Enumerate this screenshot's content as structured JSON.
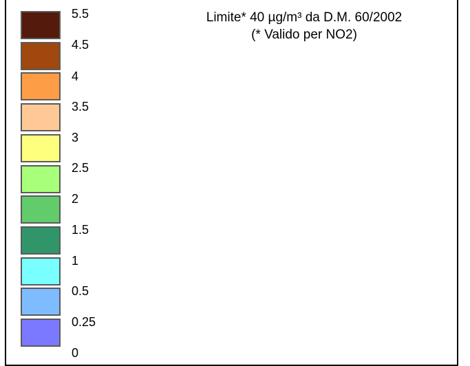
{
  "legend": {
    "ticks": [
      "5.5",
      "4.5",
      "4",
      "3.5",
      "3",
      "2.5",
      "2",
      "1.5",
      "1",
      "0.5",
      "0.25",
      "0"
    ],
    "colors": [
      "#541a0b",
      "#a0480d",
      "#fd9d45",
      "#ffc997",
      "#ffff7e",
      "#a7ff7a",
      "#62cc6a",
      "#30966a",
      "#79ffff",
      "#7fbcff",
      "#7b79ff"
    ]
  },
  "note": {
    "line1": "Limite* 40 µg/m³ da D.M. 60/2002",
    "line2": "(* Valido per NO2)"
  }
}
